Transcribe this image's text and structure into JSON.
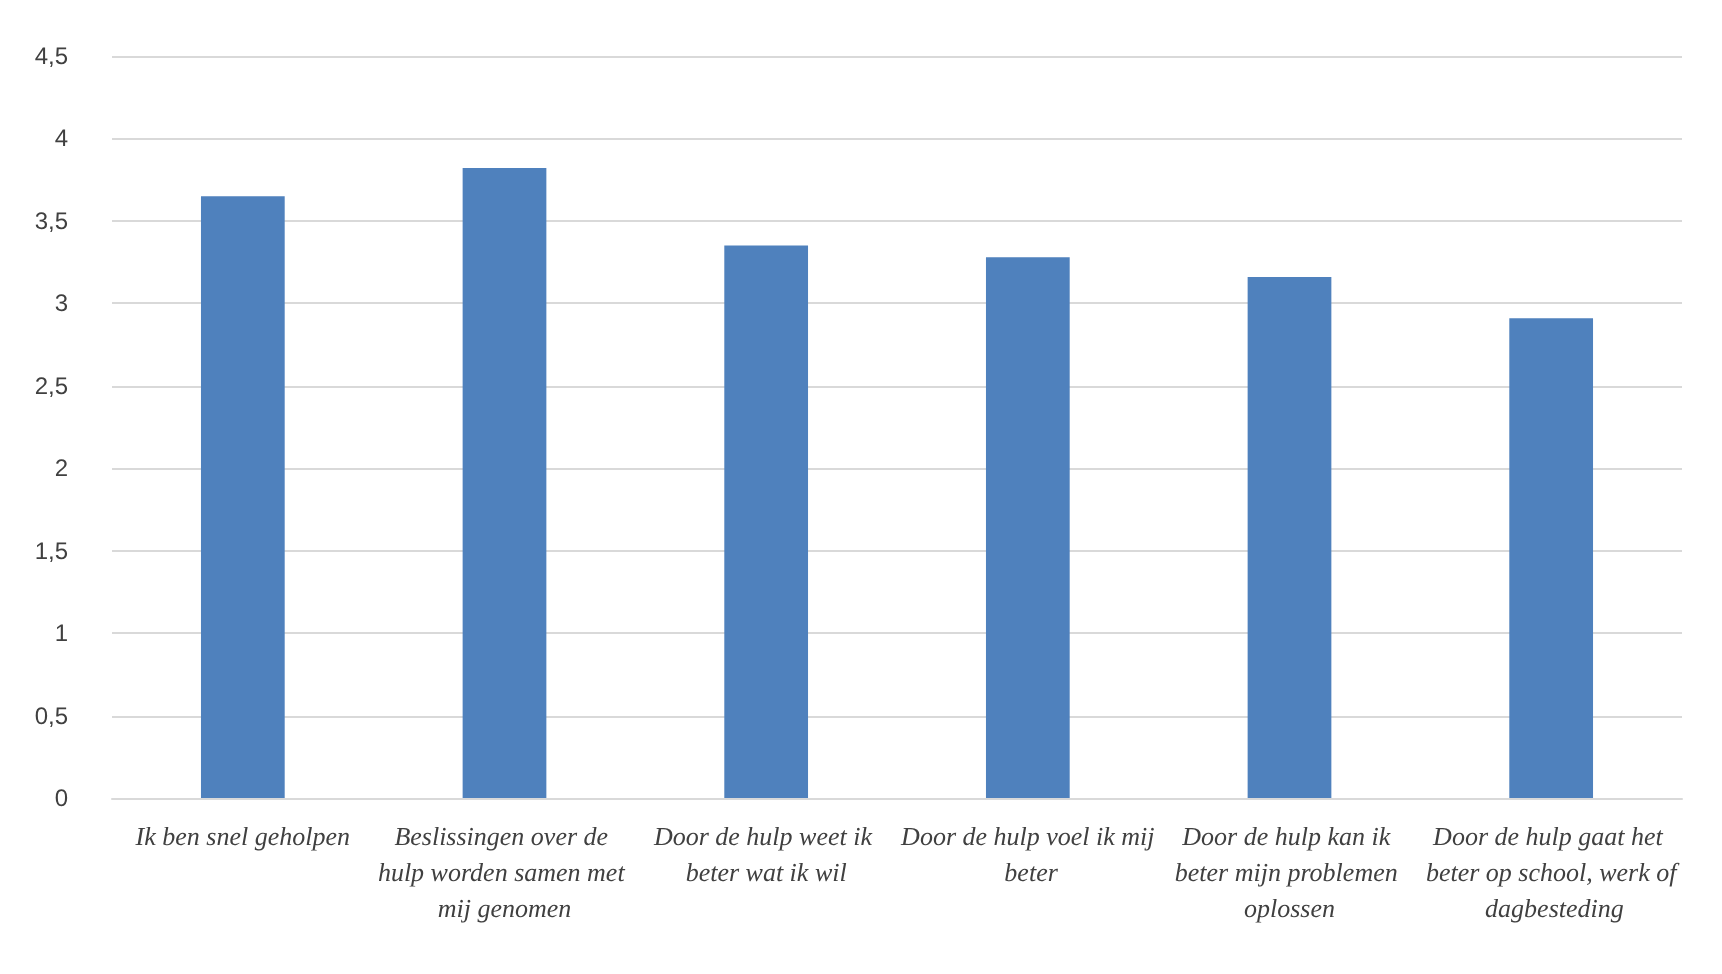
{
  "chart_data": {
    "type": "bar",
    "categories": [
      "Ik ben snel geholpen",
      "Beslissingen over de hulp worden samen met mij genomen",
      "Door de hulp weet ik beter wat ik wil",
      "Door de hulp voel ik mij beter",
      "Door de hulp kan ik beter mijn problemen oplossen",
      "Door de hulp gaat het beter op school, werk of dagbesteding"
    ],
    "values": [
      3.65,
      3.82,
      3.35,
      3.28,
      3.16,
      2.91
    ],
    "color": "#4f81bd",
    "ylim": [
      0,
      4.5
    ],
    "yticks": [
      {
        "value": 0,
        "label": "0"
      },
      {
        "value": 0.5,
        "label": "0,5"
      },
      {
        "value": 1,
        "label": "1"
      },
      {
        "value": 1.5,
        "label": "1,5"
      },
      {
        "value": 2,
        "label": "2"
      },
      {
        "value": 2.5,
        "label": "2,5"
      },
      {
        "value": 3,
        "label": "3"
      },
      {
        "value": 3.5,
        "label": "3,5"
      },
      {
        "value": 4,
        "label": "4"
      },
      {
        "value": 4.5,
        "label": "4,5"
      }
    ],
    "grid": true
  }
}
